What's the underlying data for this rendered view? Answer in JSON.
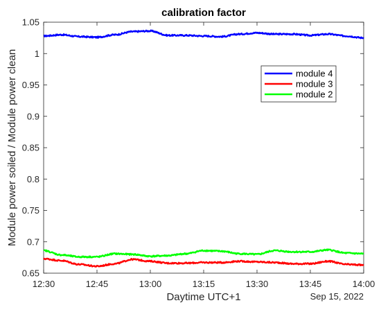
{
  "chart_data": {
    "type": "line",
    "title": "calibration factor",
    "xlabel": "Daytime UTC+1",
    "ylabel": "Module power soiled / Module power clean",
    "date_label": "Sep 15, 2022",
    "x_tick_labels": [
      "12:30",
      "12:45",
      "13:00",
      "13:15",
      "13:30",
      "13:45",
      "14:00"
    ],
    "y_tick_labels": [
      "0.65",
      "0.7",
      "0.75",
      "0.8",
      "0.85",
      "0.9",
      "0.95",
      "1",
      "1.05"
    ],
    "xlim": [
      "12:30",
      "14:00"
    ],
    "ylim": [
      0.65,
      1.05
    ],
    "grid": false,
    "legend_position": "upper-right",
    "x": [
      "12:30",
      "12:35",
      "12:40",
      "12:45",
      "12:50",
      "12:55",
      "13:00",
      "13:05",
      "13:10",
      "13:15",
      "13:20",
      "13:25",
      "13:30",
      "13:35",
      "13:40",
      "13:45",
      "13:50",
      "13:55",
      "14:00"
    ],
    "series": [
      {
        "name": "module 4",
        "color": "#0000ff",
        "values": [
          1.028,
          1.03,
          1.027,
          1.026,
          1.03,
          1.035,
          1.036,
          1.029,
          1.029,
          1.028,
          1.027,
          1.031,
          1.033,
          1.031,
          1.031,
          1.029,
          1.031,
          1.028,
          1.025
        ]
      },
      {
        "name": "module 3",
        "color": "#ff0000",
        "values": [
          0.673,
          0.67,
          0.664,
          0.661,
          0.665,
          0.672,
          0.669,
          0.666,
          0.666,
          0.667,
          0.667,
          0.669,
          0.668,
          0.667,
          0.665,
          0.665,
          0.669,
          0.664,
          0.663
        ]
      },
      {
        "name": "module 2",
        "color": "#00ff00",
        "values": [
          0.686,
          0.679,
          0.676,
          0.676,
          0.681,
          0.68,
          0.677,
          0.678,
          0.681,
          0.686,
          0.685,
          0.681,
          0.68,
          0.686,
          0.684,
          0.684,
          0.687,
          0.682,
          0.681
        ]
      }
    ]
  }
}
